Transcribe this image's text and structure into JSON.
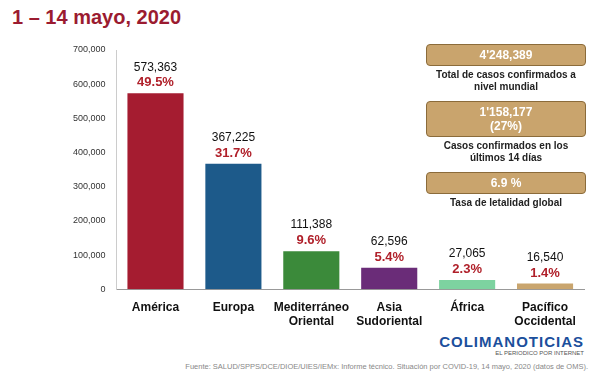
{
  "chart_data": {
    "type": "bar",
    "title": "1 – 14 mayo, 2020",
    "categories": [
      "América",
      "Europa",
      "Mediterráneo Oriental",
      "Asia Sudoriental",
      "África",
      "Pacífico Occidental"
    ],
    "values": [
      573363,
      367225,
      111388,
      62596,
      27065,
      16540
    ],
    "value_labels": [
      "573,363",
      "367,225",
      "111,388",
      "62,596",
      "27,065",
      "16,540"
    ],
    "share_labels": [
      "49.5%",
      "31.7%",
      "9.6%",
      "5.4%",
      "2.3%",
      "1.4%"
    ],
    "colors": [
      "#a51c30",
      "#1d5a8a",
      "#3b8a3a",
      "#6a2c78",
      "#7dd3a0",
      "#c9a56e"
    ],
    "ylim": [
      0,
      700000
    ],
    "yticks": [
      0,
      {
        "value": 100000,
        "label": "100,000"
      },
      {
        "value": 200000,
        "label": "200,000"
      },
      {
        "value": 300000,
        "label": "300,000"
      },
      {
        "value": 400000,
        "label": "400,000"
      },
      {
        "value": 500000,
        "label": "500,000"
      },
      {
        "value": 600000,
        "label": "600,000"
      },
      {
        "value": 700000,
        "label": "700,000"
      }
    ],
    "grid": false,
    "data_labels": true
  },
  "panels": [
    {
      "numbers": [
        "4'248,389"
      ],
      "text": "Total de casos confirmados a nivel mundial"
    },
    {
      "numbers": [
        "1'158,177",
        "(27%)"
      ],
      "text": "Casos confirmados en los últimos 14 días"
    },
    {
      "numbers": [
        "6.9 %"
      ],
      "text": "Tasa de letalidad global"
    }
  ],
  "watermark": [
    "COLIMANOTICIAS",
    "EL PERIODICO POR INTERNET"
  ],
  "source": "Fuente: SALUD/SPPS/DCE/DIOE/UIES/IEMx: Informe técnico. Situación por COVID-19, 14 mayo, 2020 (datos de OMS)."
}
